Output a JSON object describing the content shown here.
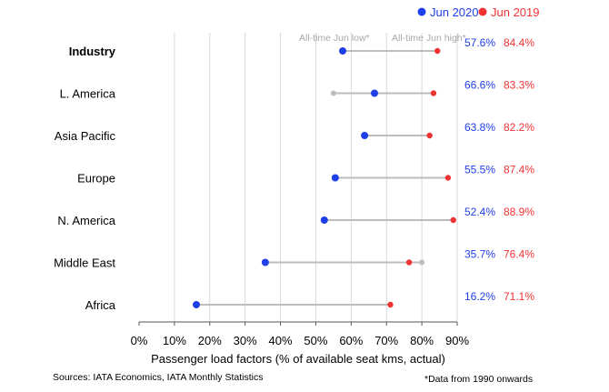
{
  "chart_data": {
    "type": "dumbbell",
    "xlabel": "Passenger load factors (% of available seat kms, actual)",
    "xlim": [
      0,
      90
    ],
    "x_ticks": [
      0,
      10,
      20,
      30,
      40,
      50,
      60,
      70,
      80,
      90
    ],
    "x_tick_format": "%",
    "grid": "vertical",
    "legend_position": "top-right",
    "colors": {
      "jun2020": "#1f3fe8",
      "jun2019": "#ee3333",
      "range": "#bdbdbd",
      "grid": "#d9d9d9"
    },
    "categories": [
      "Industry",
      "L. America",
      "Asia Pacific",
      "Europe",
      "N. America",
      "Middle East",
      "Africa"
    ],
    "bold_categories": [
      "Industry"
    ],
    "series": [
      {
        "name": "Jun 2020",
        "color": "#1f3fe8",
        "values": [
          57.6,
          66.6,
          63.8,
          55.5,
          52.4,
          35.7,
          16.2
        ]
      },
      {
        "name": "Jun 2019",
        "color": "#ee3333",
        "values": [
          84.4,
          83.3,
          82.2,
          87.4,
          88.9,
          76.4,
          71.1
        ]
      }
    ],
    "all_time_jun_low": [
      null,
      55.0,
      null,
      null,
      null,
      null,
      null
    ],
    "all_time_jun_high": [
      null,
      null,
      null,
      null,
      null,
      80.0,
      null
    ],
    "value_labels": {
      "jun2020": [
        "57.6%",
        "66.6%",
        "63.8%",
        "55.5%",
        "52.4%",
        "35.7%",
        "16.2%"
      ],
      "jun2019": [
        "84.4%",
        "83.3%",
        "82.2%",
        "87.4%",
        "88.9%",
        "76.4%",
        "71.1%"
      ]
    },
    "annotations": {
      "low_label": "All-time Jun low*",
      "high_label": "All-time Jun high*"
    },
    "legend": [
      {
        "label": "Jun 2020",
        "color": "#1f3fe8"
      },
      {
        "label": "Jun 2019",
        "color": "#ee3333"
      }
    ]
  },
  "footnotes": {
    "source": "Sources: IATA Economics, IATA Monthly Statistics",
    "note": "*Data from 1990 onwards"
  }
}
